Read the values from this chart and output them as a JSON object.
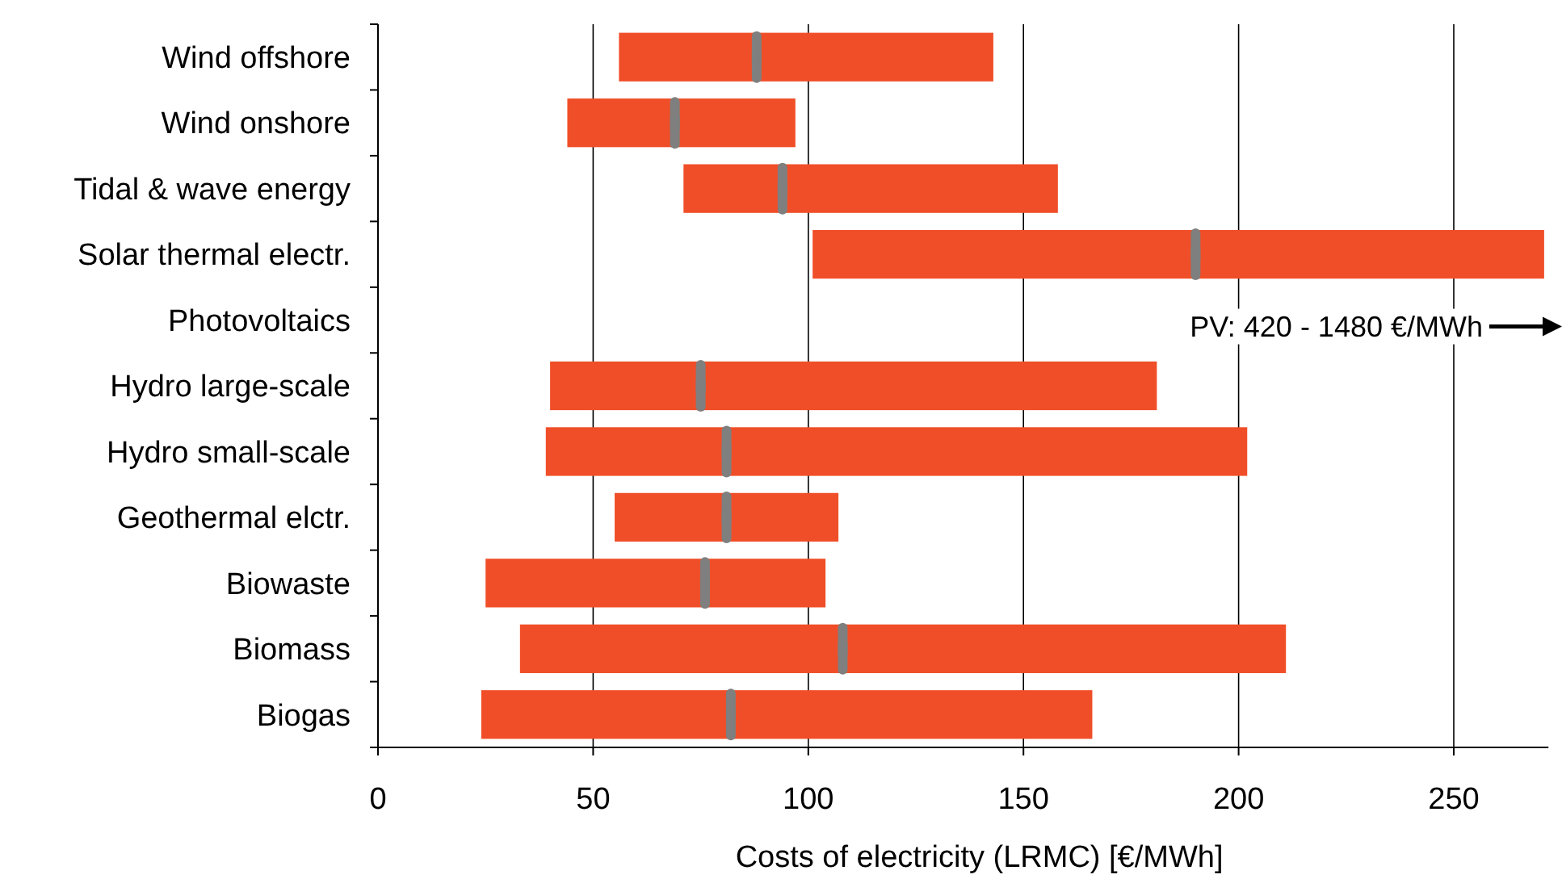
{
  "chart_data": {
    "type": "bar",
    "orientation": "horizontal",
    "xlabel": "Costs of electricity (LRMC) [€/MWh]",
    "categories": [
      "Wind offshore",
      "Wind onshore",
      "Tidal & wave energy",
      "Solar thermal electr.",
      "Photovoltaics",
      "Hydro large-scale",
      "Hydro small-scale",
      "Geothermal elctr.",
      "Biowaste",
      "Biomass",
      "Biogas"
    ],
    "series": [
      {
        "color": "#f04e28",
        "base": [
          56,
          44,
          71,
          101,
          null,
          40,
          39,
          55,
          25,
          33,
          24
        ],
        "values": [
          87,
          53,
          87,
          170,
          null,
          141,
          163,
          52,
          79,
          178,
          142
        ]
      },
      {
        "type": "scatter",
        "color": "#7f7f7f",
        "values": [
          88,
          69,
          94,
          190,
          null,
          75,
          81,
          81,
          76,
          108,
          82
        ]
      }
    ],
    "xlim": [
      0,
      272
    ],
    "xticks": [
      0,
      50,
      100,
      150,
      200,
      250
    ],
    "grid": "x",
    "annotations": [
      "PV: 420 - 1480 €/MWh"
    ]
  }
}
